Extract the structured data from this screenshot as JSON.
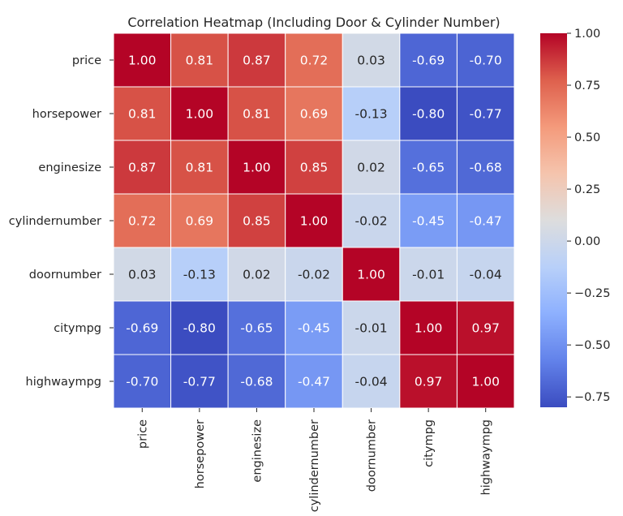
{
  "chart_data": {
    "type": "heatmap",
    "title": "Correlation Heatmap (Including Door & Cylinder Number)",
    "row_labels": [
      "price",
      "horsepower",
      "enginesize",
      "cylindernumber",
      "doornumber",
      "citympg",
      "highwaympg"
    ],
    "col_labels": [
      "price",
      "horsepower",
      "enginesize",
      "cylindernumber",
      "doornumber",
      "citympg",
      "highwaympg"
    ],
    "values": [
      [
        1.0,
        0.81,
        0.87,
        0.72,
        0.03,
        -0.69,
        -0.7
      ],
      [
        0.81,
        1.0,
        0.81,
        0.69,
        -0.13,
        -0.8,
        -0.77
      ],
      [
        0.87,
        0.81,
        1.0,
        0.85,
        0.02,
        -0.65,
        -0.68
      ],
      [
        0.72,
        0.69,
        0.85,
        1.0,
        -0.02,
        -0.45,
        -0.47
      ],
      [
        0.03,
        -0.13,
        0.02,
        -0.02,
        1.0,
        -0.01,
        -0.04
      ],
      [
        -0.69,
        -0.8,
        -0.65,
        -0.45,
        -0.01,
        1.0,
        0.97
      ],
      [
        -0.7,
        -0.77,
        -0.68,
        -0.47,
        -0.04,
        0.97,
        1.0
      ]
    ],
    "value_format": "0.00",
    "colormap": "coolwarm",
    "colorbar": {
      "range": [
        -0.8,
        1.0
      ],
      "ticks": [
        1.0,
        0.75,
        0.5,
        0.25,
        0.0,
        -0.25,
        -0.5,
        -0.75
      ],
      "tick_labels": [
        "1.00",
        "0.75",
        "0.50",
        "0.25",
        "0.00",
        "−0.25",
        "−0.50",
        "−0.75"
      ]
    },
    "grid_lines_color": "#ffffff"
  }
}
